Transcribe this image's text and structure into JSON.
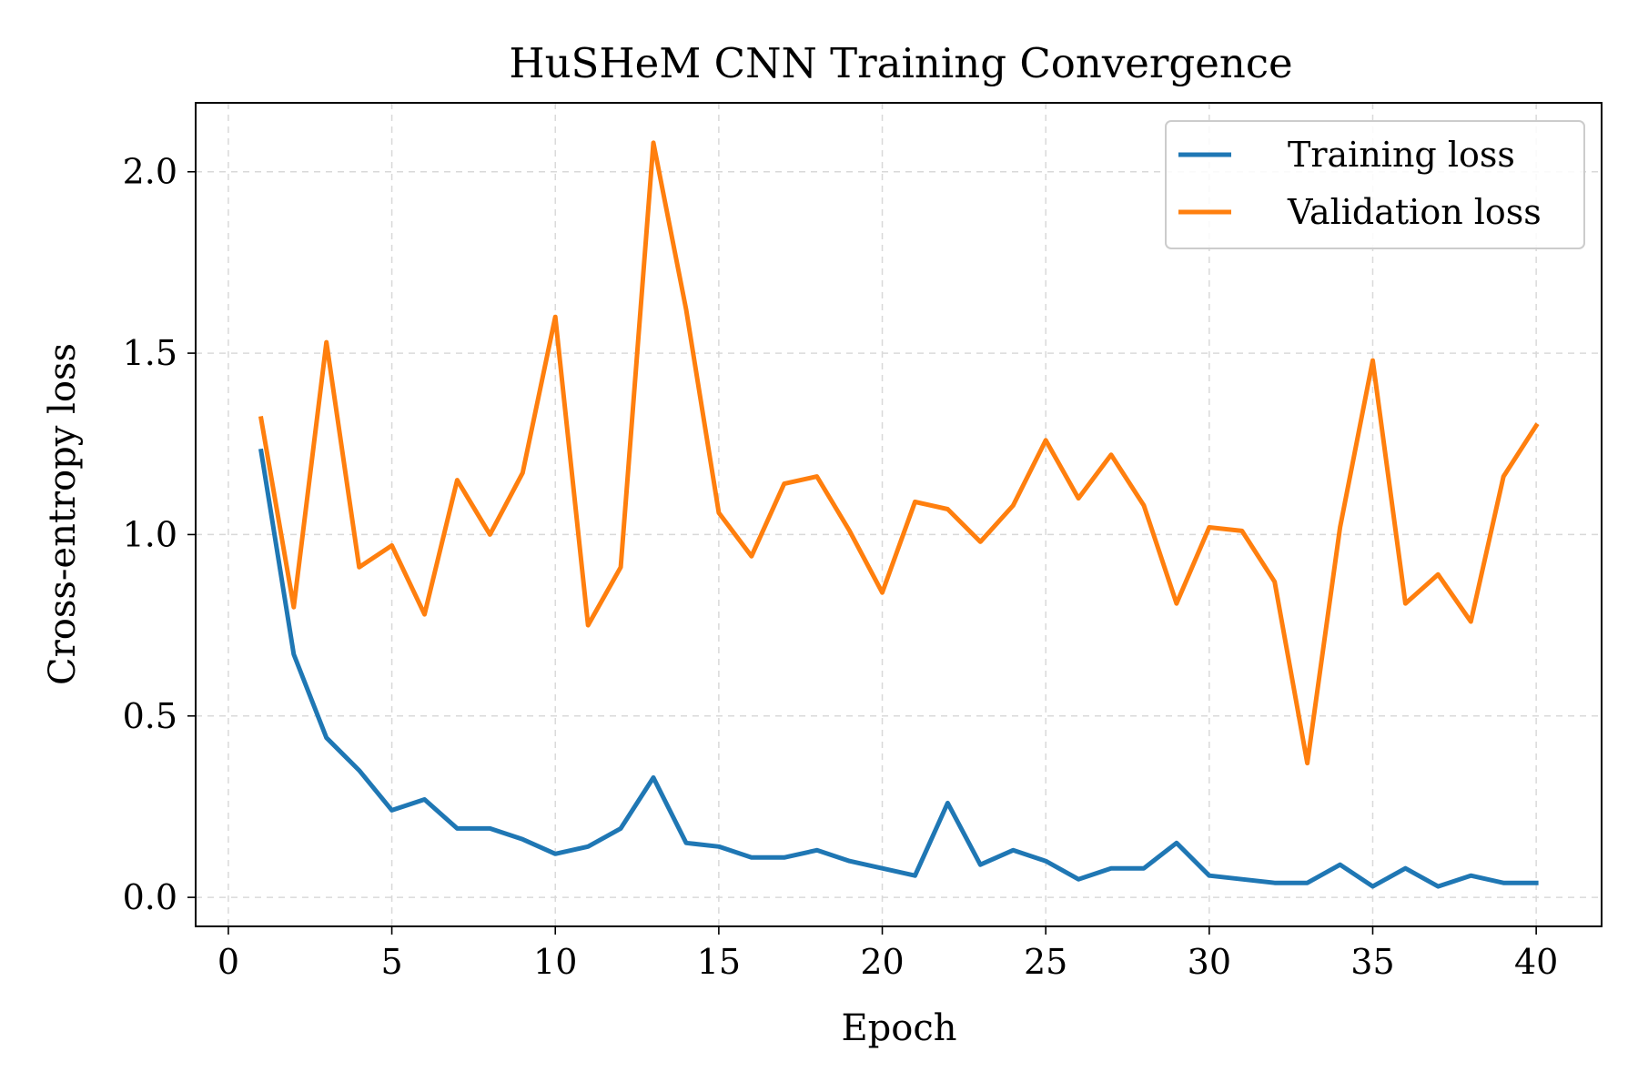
{
  "chart_data": {
    "type": "line",
    "title": "HuSHeM CNN Training Convergence",
    "xlabel": "Epoch",
    "ylabel": "Cross-entropy loss",
    "xlim": [
      -1,
      42
    ],
    "ylim": [
      -0.08,
      2.19
    ],
    "xticks": [
      0,
      5,
      10,
      15,
      20,
      25,
      30,
      35,
      40
    ],
    "xtick_labels": [
      "0",
      "5",
      "10",
      "15",
      "20",
      "25",
      "30",
      "35",
      "40"
    ],
    "yticks": [
      0.0,
      0.5,
      1.0,
      1.5,
      2.0
    ],
    "ytick_labels": [
      "0.0",
      "0.5",
      "1.0",
      "1.5",
      "2.0"
    ],
    "grid": true,
    "legend_position": "top-right",
    "x": [
      1,
      2,
      3,
      4,
      5,
      6,
      7,
      8,
      9,
      10,
      11,
      12,
      13,
      14,
      15,
      16,
      17,
      18,
      19,
      20,
      21,
      22,
      23,
      24,
      25,
      26,
      27,
      28,
      29,
      30,
      31,
      32,
      33,
      34,
      35,
      36,
      37,
      38,
      39,
      40
    ],
    "series": [
      {
        "name": "Training loss",
        "color": "#1f77b4",
        "values": [
          1.23,
          0.67,
          0.44,
          0.35,
          0.24,
          0.27,
          0.19,
          0.19,
          0.16,
          0.12,
          0.14,
          0.19,
          0.33,
          0.15,
          0.14,
          0.11,
          0.11,
          0.13,
          0.1,
          0.08,
          0.06,
          0.26,
          0.09,
          0.13,
          0.1,
          0.05,
          0.08,
          0.08,
          0.15,
          0.06,
          0.05,
          0.04,
          0.04,
          0.09,
          0.03,
          0.08,
          0.03,
          0.06,
          0.04,
          0.04
        ]
      },
      {
        "name": "Validation loss",
        "color": "#ff7f0e",
        "values": [
          1.32,
          0.8,
          1.53,
          0.91,
          0.97,
          0.78,
          1.15,
          1.0,
          1.17,
          1.6,
          0.75,
          0.91,
          2.08,
          1.62,
          1.06,
          0.94,
          1.14,
          1.16,
          1.01,
          0.84,
          1.09,
          1.07,
          0.98,
          1.08,
          1.26,
          1.1,
          1.22,
          1.08,
          0.81,
          1.02,
          1.01,
          0.87,
          0.37,
          1.02,
          1.48,
          0.81,
          0.89,
          0.76,
          1.16,
          1.3
        ]
      }
    ]
  }
}
